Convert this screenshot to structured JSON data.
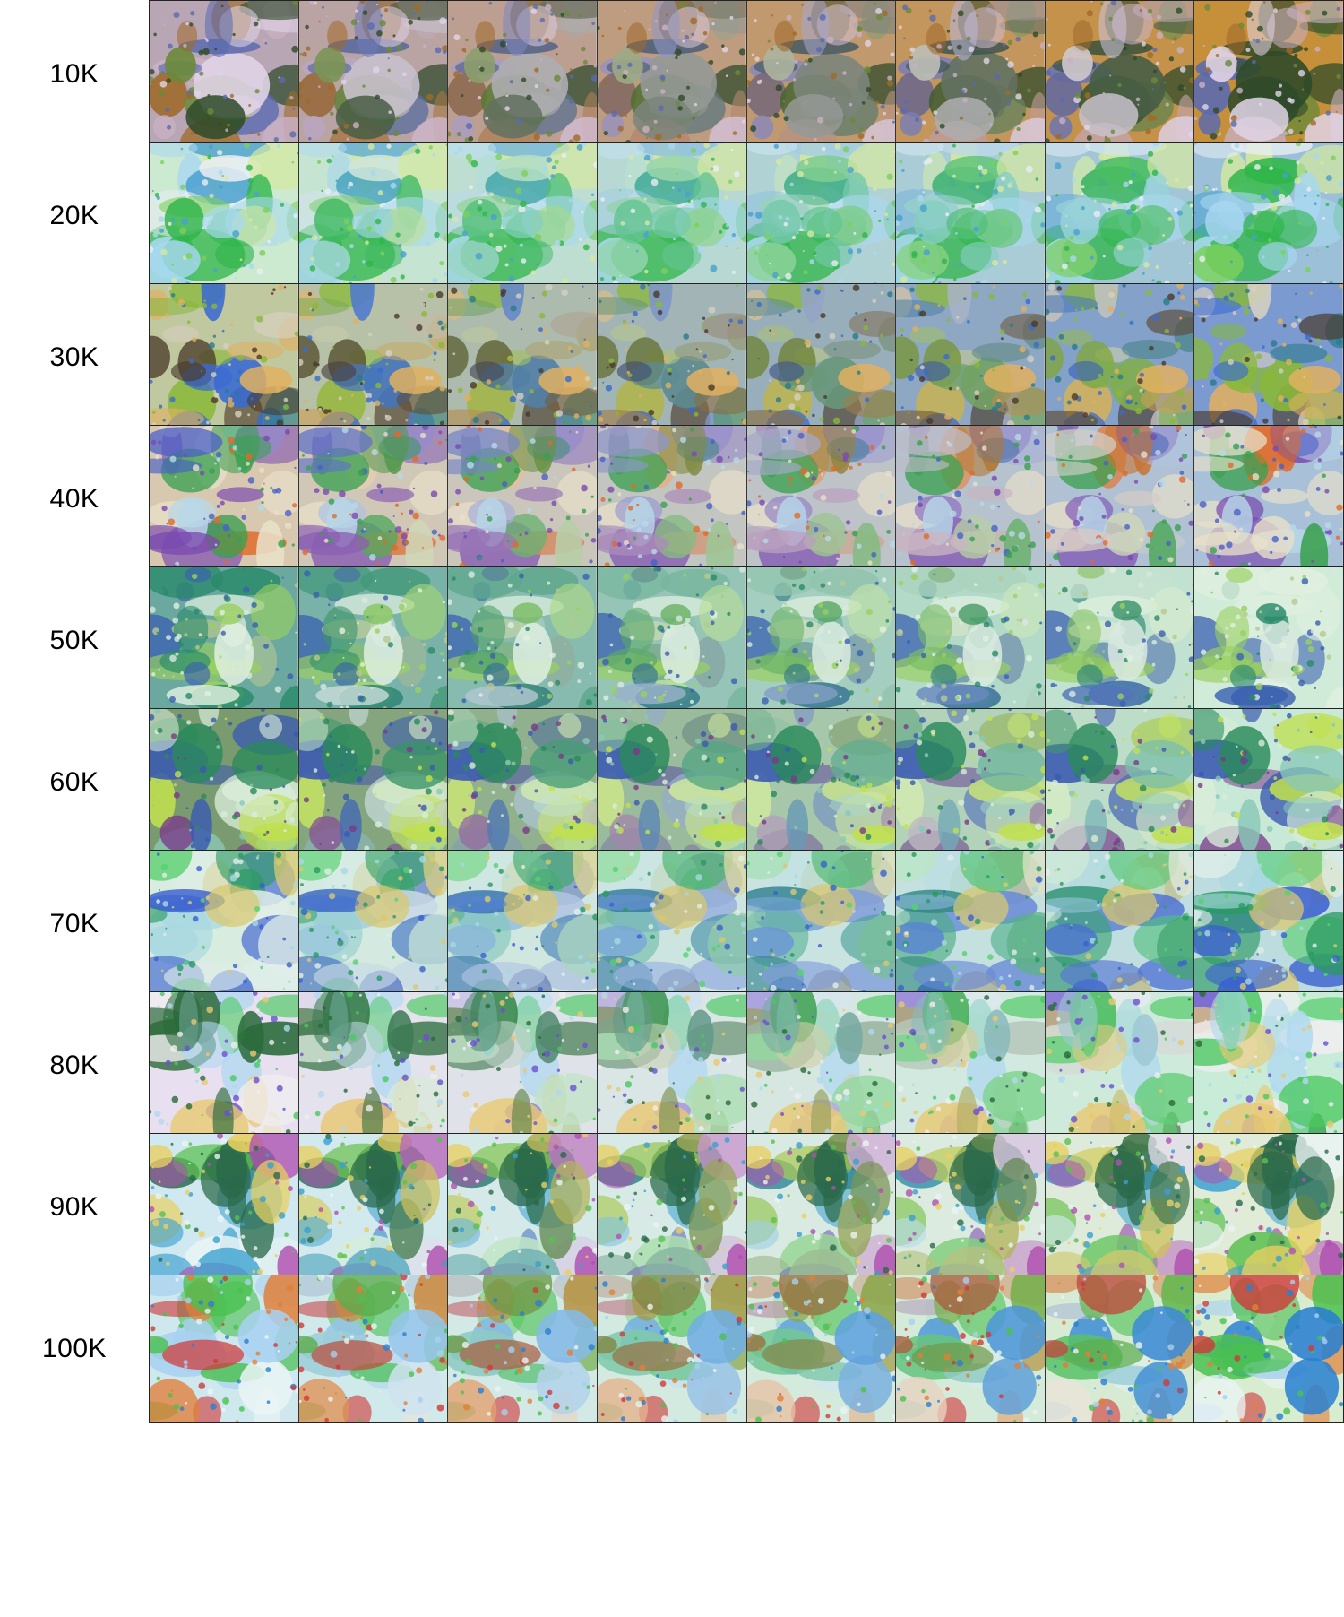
{
  "rows": [
    {
      "label": "10K",
      "palette": [
        "#c9b0c4",
        "#2f4a2a",
        "#5a6ab0",
        "#a06a2a",
        "#6a8a3a",
        "#e0d4e6"
      ],
      "bg_start": "#b8a6b4",
      "bg_end": "#c68f3a"
    },
    {
      "label": "20K",
      "palette": [
        "#e8eef2",
        "#2fb54a",
        "#4aa0d0",
        "#7ccf5a",
        "#a8d8f0",
        "#d4e8a0"
      ],
      "bg_start": "#ccead0",
      "bg_end": "#9cc0d8"
    },
    {
      "label": "30K",
      "palette": [
        "#d6d0c0",
        "#3a6ad0",
        "#8ab83a",
        "#2a7a8a",
        "#e0b060",
        "#4a3a2a"
      ],
      "bg_start": "#c0c8a0",
      "bg_end": "#7a9ad0"
    },
    {
      "label": "40K",
      "palette": [
        "#e8e0c8",
        "#e06a2a",
        "#4a60c8",
        "#3aa050",
        "#b8d8e8",
        "#7a4ab0"
      ],
      "bg_start": "#d8c8b0",
      "bg_end": "#a8c0d8"
    },
    {
      "label": "50K",
      "palette": [
        "#d8e8e0",
        "#2a8a6a",
        "#3a60b0",
        "#9ad060",
        "#b8c890",
        "#e0f0e0"
      ],
      "bg_start": "#6aa8a0",
      "bg_end": "#d0ecd8"
    },
    {
      "label": "60K",
      "palette": [
        "#d8ecd8",
        "#3a5ab0",
        "#c0e050",
        "#2a8a5a",
        "#8ac8b8",
        "#7a3a8a"
      ],
      "bg_start": "#7a9a70",
      "bg_end": "#c8e8d8"
    },
    {
      "label": "70K",
      "palette": [
        "#dfeee8",
        "#3a60d0",
        "#5ad070",
        "#a8d8e0",
        "#2a9a60",
        "#d8c870"
      ],
      "bg_start": "#d8ece0",
      "bg_end": "#bcdce0"
    },
    {
      "label": "80K",
      "palette": [
        "#f0eef0",
        "#6a50d0",
        "#4ac860",
        "#b0d8f0",
        "#e8c870",
        "#2a6a3a"
      ],
      "bg_start": "#e8e0f0",
      "bg_end": "#c8ecd8"
    },
    {
      "label": "90K",
      "palette": [
        "#eaf4f4",
        "#3aa0d0",
        "#5ac050",
        "#b050b0",
        "#e8d060",
        "#2a6a4a"
      ],
      "bg_start": "#d0e8f0",
      "bg_end": "#e0ecd8"
    },
    {
      "label": "100K",
      "palette": [
        "#eaf4f4",
        "#2a80d0",
        "#4ac050",
        "#e0803a",
        "#d03a3a",
        "#a8d0f0"
      ],
      "bg_start": "#cfe8ee",
      "bg_end": "#d8ecd0"
    }
  ]
}
